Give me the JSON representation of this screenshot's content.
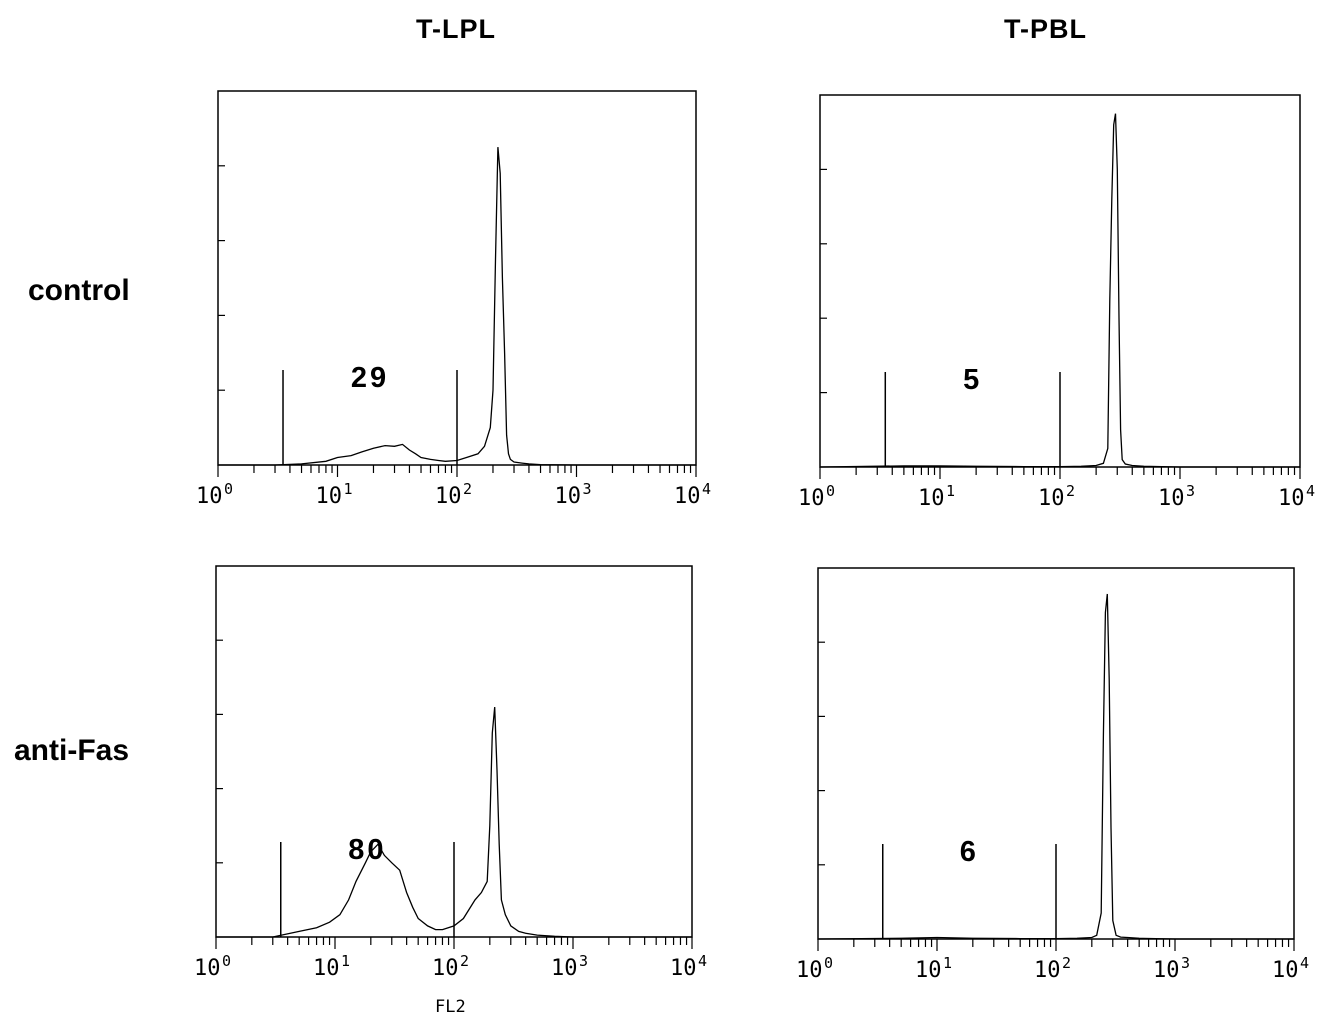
{
  "column_titles": [
    "T-LPL",
    "T-PBL"
  ],
  "row_labels": [
    "control",
    "anti-Fas"
  ],
  "x_axis_label": "FL2",
  "chart_data": [
    {
      "type": "area",
      "column": "T-LPL",
      "row": "control",
      "xscale": "log",
      "xlim": [
        1,
        10000
      ],
      "ylim": [
        0,
        1
      ],
      "xticklabels": [
        {
          "base": "10",
          "exp": "0"
        },
        {
          "base": "10",
          "exp": "1"
        },
        {
          "base": "10",
          "exp": "2"
        },
        {
          "base": "10",
          "exp": "3"
        },
        {
          "base": "10",
          "exp": "4"
        }
      ],
      "gate": {
        "start": 3.5,
        "end": 100,
        "percent": "29"
      },
      "x": [
        1,
        3,
        5,
        8,
        10,
        13,
        16,
        20,
        25,
        30,
        35,
        40,
        45,
        50,
        60,
        70,
        80,
        100,
        120,
        150,
        170,
        190,
        200,
        210,
        220,
        230,
        240,
        250,
        260,
        270,
        280,
        300,
        350,
        400,
        500,
        1000,
        10000
      ],
      "y": [
        0,
        0,
        0.003,
        0.01,
        0.02,
        0.025,
        0.035,
        0.045,
        0.052,
        0.05,
        0.055,
        0.04,
        0.03,
        0.02,
        0.015,
        0.012,
        0.01,
        0.012,
        0.02,
        0.03,
        0.05,
        0.1,
        0.2,
        0.55,
        0.85,
        0.78,
        0.5,
        0.3,
        0.08,
        0.03,
        0.015,
        0.008,
        0.005,
        0.003,
        0.001,
        0,
        0
      ]
    },
    {
      "type": "area",
      "column": "T-PBL",
      "row": "control",
      "xscale": "log",
      "xlim": [
        1,
        10000
      ],
      "ylim": [
        0,
        1
      ],
      "xticklabels": [
        {
          "base": "10",
          "exp": "0"
        },
        {
          "base": "10",
          "exp": "1"
        },
        {
          "base": "10",
          "exp": "2"
        },
        {
          "base": "10",
          "exp": "3"
        },
        {
          "base": "10",
          "exp": "4"
        }
      ],
      "gate": {
        "start": 3.5,
        "end": 100,
        "percent": "5"
      },
      "x": [
        1,
        5,
        10,
        20,
        50,
        100,
        150,
        200,
        230,
        250,
        260,
        270,
        280,
        290,
        300,
        310,
        320,
        330,
        350,
        400,
        500,
        1000,
        10000
      ],
      "y": [
        0,
        0.003,
        0.003,
        0.002,
        0.001,
        0.001,
        0.002,
        0.004,
        0.01,
        0.05,
        0.45,
        0.72,
        0.92,
        0.95,
        0.8,
        0.4,
        0.1,
        0.02,
        0.008,
        0.004,
        0.002,
        0,
        0
      ]
    },
    {
      "type": "area",
      "column": "T-LPL",
      "row": "anti-Fas",
      "xscale": "log",
      "xlim": [
        1,
        10000
      ],
      "ylim": [
        0,
        1
      ],
      "xticklabels": [
        {
          "base": "10",
          "exp": "0"
        },
        {
          "base": "10",
          "exp": "1"
        },
        {
          "base": "10",
          "exp": "2"
        },
        {
          "base": "10",
          "exp": "3"
        },
        {
          "base": "10",
          "exp": "4"
        }
      ],
      "gate": {
        "start": 3.5,
        "end": 100,
        "percent": "80"
      },
      "x": [
        1,
        3,
        5,
        7,
        9,
        11,
        13,
        15,
        18,
        20,
        23,
        26,
        30,
        35,
        40,
        45,
        50,
        60,
        70,
        80,
        100,
        120,
        150,
        170,
        190,
        200,
        210,
        220,
        230,
        240,
        250,
        270,
        300,
        350,
        400,
        500,
        700,
        1000,
        10000
      ],
      "y": [
        0,
        0,
        0.015,
        0.025,
        0.04,
        0.06,
        0.1,
        0.15,
        0.2,
        0.23,
        0.25,
        0.22,
        0.2,
        0.18,
        0.12,
        0.08,
        0.05,
        0.03,
        0.02,
        0.02,
        0.03,
        0.05,
        0.1,
        0.12,
        0.15,
        0.3,
        0.55,
        0.62,
        0.45,
        0.25,
        0.1,
        0.06,
        0.03,
        0.015,
        0.01,
        0.005,
        0.002,
        0,
        0
      ]
    },
    {
      "type": "area",
      "column": "T-PBL",
      "row": "anti-Fas",
      "xscale": "log",
      "xlim": [
        1,
        10000
      ],
      "ylim": [
        0,
        1
      ],
      "xticklabels": [
        {
          "base": "10",
          "exp": "0"
        },
        {
          "base": "10",
          "exp": "1"
        },
        {
          "base": "10",
          "exp": "2"
        },
        {
          "base": "10",
          "exp": "3"
        },
        {
          "base": "10",
          "exp": "4"
        }
      ],
      "gate": {
        "start": 3.5,
        "end": 100,
        "percent": "6"
      },
      "x": [
        1,
        5,
        10,
        20,
        50,
        100,
        150,
        200,
        220,
        240,
        250,
        260,
        270,
        280,
        290,
        300,
        320,
        350,
        400,
        500,
        1000,
        10000
      ],
      "y": [
        0,
        0.002,
        0.004,
        0.002,
        0.001,
        0.001,
        0.002,
        0.004,
        0.01,
        0.07,
        0.55,
        0.88,
        0.93,
        0.7,
        0.3,
        0.05,
        0.01,
        0.005,
        0.004,
        0.002,
        0,
        0
      ]
    }
  ]
}
